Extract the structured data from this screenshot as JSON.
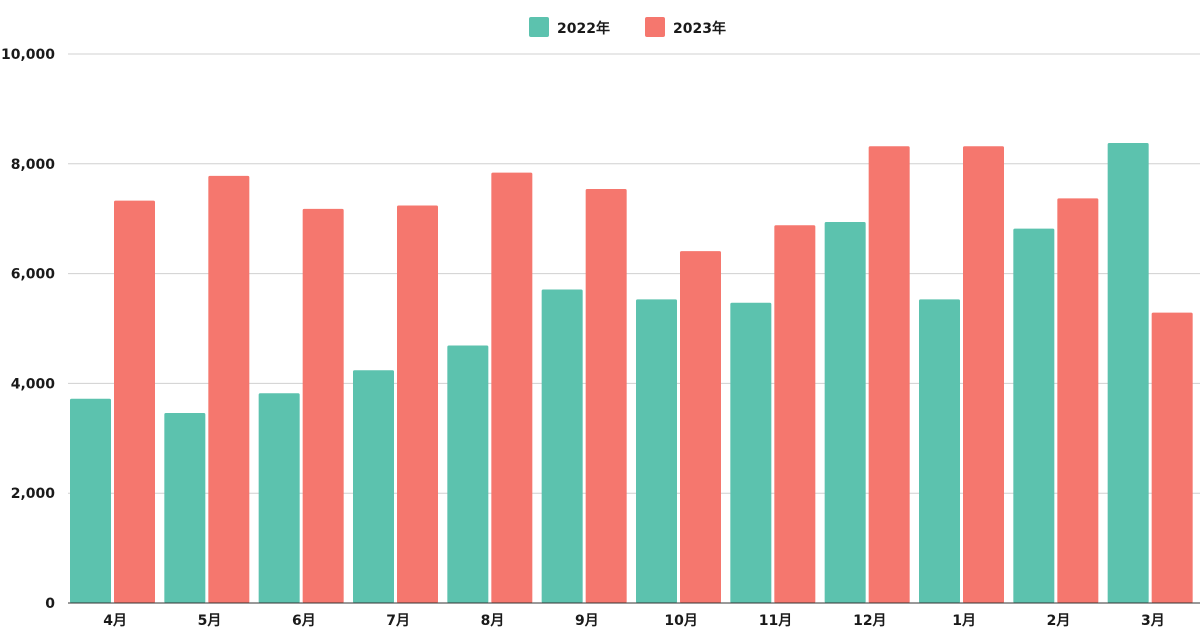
{
  "chart_data": {
    "type": "bar",
    "categories": [
      "4月",
      "5月",
      "6月",
      "7月",
      "8月",
      "9月",
      "10月",
      "11月",
      "12月",
      "1月",
      "2月",
      "3月"
    ],
    "series": [
      {
        "name": "2022年",
        "color": "#5cc2ae",
        "values": [
          3720,
          3460,
          3820,
          4240,
          4690,
          5710,
          5530,
          5470,
          6940,
          5530,
          6820,
          8380
        ]
      },
      {
        "name": "2023年",
        "color": "#f5776e",
        "values": [
          7330,
          7780,
          7180,
          7240,
          7840,
          7540,
          6410,
          6880,
          8320,
          8320,
          7370,
          5290
        ]
      }
    ],
    "y_ticks": [
      "0",
      "2,000",
      "4,000",
      "6,000",
      "8,000",
      "10,000"
    ],
    "ylim": [
      0,
      10000
    ],
    "grid": true,
    "legend_position": "top-center",
    "xlabel": "",
    "ylabel": ""
  }
}
